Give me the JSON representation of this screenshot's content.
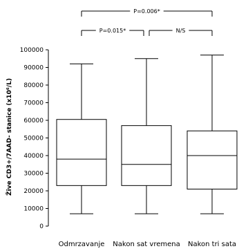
{
  "chart_data": {
    "type": "box",
    "ylabel": "Žive CD3+/7AAD- stanice (x10⁶/L)",
    "ylim": [
      0,
      100000
    ],
    "yticks": [
      0,
      10000,
      20000,
      30000,
      40000,
      50000,
      60000,
      70000,
      80000,
      90000,
      100000
    ],
    "categories": [
      "Odmrzavanje",
      "Nakon sat vremena",
      "Nakon tri sata"
    ],
    "boxes": [
      {
        "min": 7000,
        "q1": 23000,
        "median": 38000,
        "q3": 60500,
        "max": 92000
      },
      {
        "min": 7000,
        "q1": 23000,
        "median": 35000,
        "q3": 57000,
        "max": 95000
      },
      {
        "min": 7000,
        "q1": 21000,
        "median": 40000,
        "q3": 54000,
        "max": 97000
      }
    ],
    "annotations": [
      {
        "label": "P=0.006*",
        "from": 0,
        "to": 2,
        "level": 2
      },
      {
        "label": "P=0.015*",
        "from": 0,
        "to": 1,
        "level": 1
      },
      {
        "label": "N/S",
        "from": 1,
        "to": 2,
        "level": 1
      }
    ]
  }
}
